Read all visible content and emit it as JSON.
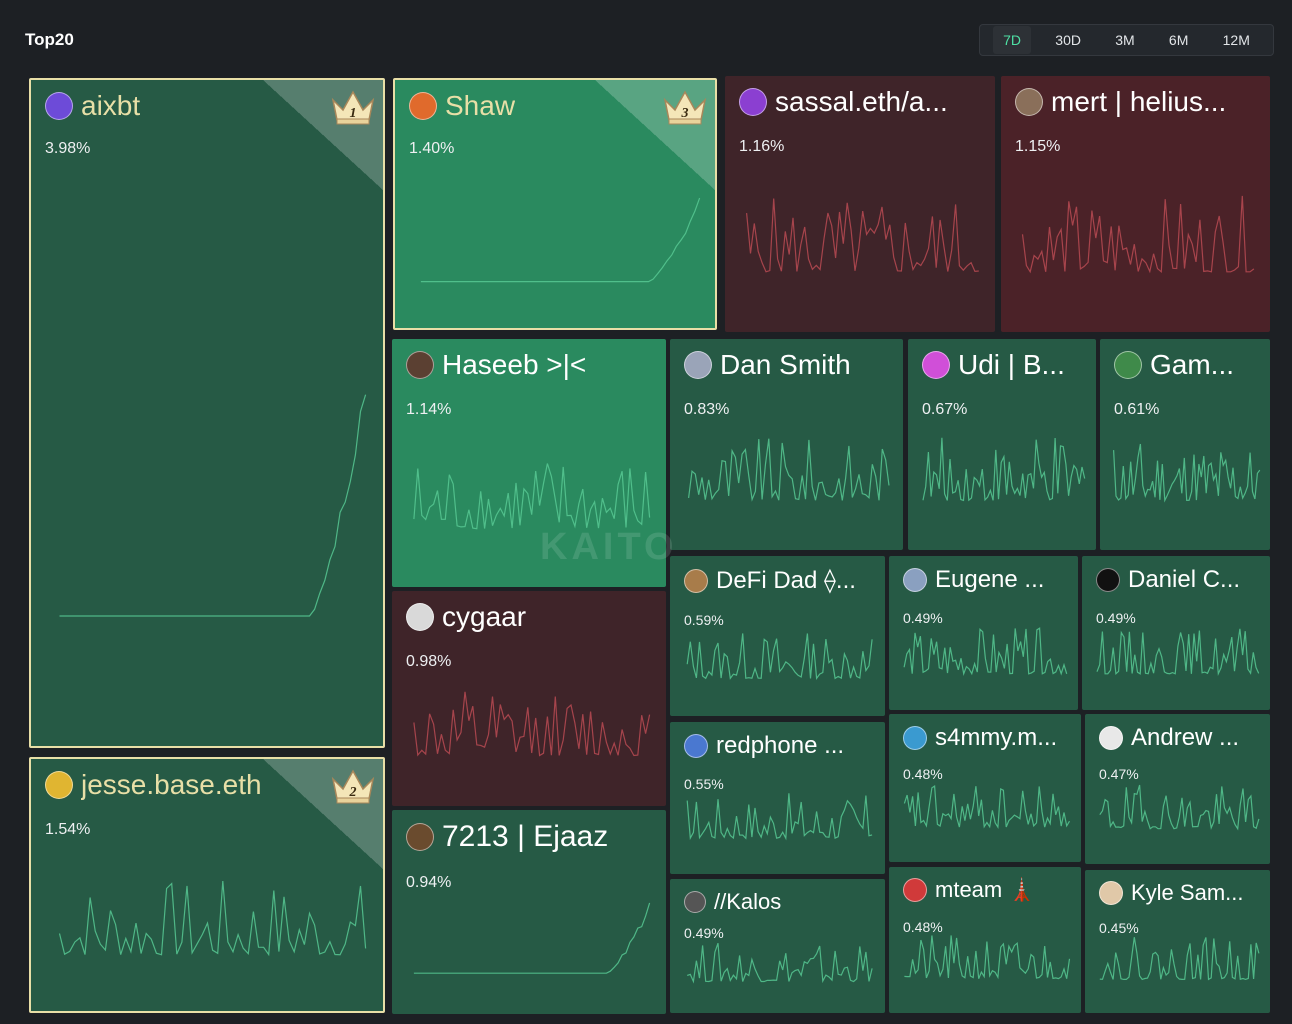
{
  "header": {
    "title": "Top20",
    "ranges": [
      "7D",
      "30D",
      "3M",
      "6M",
      "12M"
    ],
    "active_range": "7D"
  },
  "watermark": "KAITO",
  "colors": {
    "up": "#265a45",
    "up_bright": "#2a8a5f",
    "down": "#3f2429",
    "down_medium": "#4b2228",
    "spark_up": "#57c893",
    "spark_down": "#b84a52",
    "gold": "#e8dfa7"
  },
  "tiles": [
    {
      "name": "aixbt",
      "pct": "3.98%",
      "rank": "1",
      "trend": "up",
      "avatar_icon": "purple-avatar-icon"
    },
    {
      "name": "Shaw",
      "pct": "1.40%",
      "rank": "3",
      "trend": "up",
      "avatar_icon": "orange-hat-avatar-icon"
    },
    {
      "name": "sassal.eth/a...",
      "pct": "1.16%",
      "trend": "down",
      "avatar_icon": "purple-glow-avatar-icon"
    },
    {
      "name": "mert | helius...",
      "pct": "1.15%",
      "trend": "down",
      "avatar_icon": "bearded-avatar-icon"
    },
    {
      "name": "jesse.base.eth",
      "pct": "1.54%",
      "rank": "2",
      "trend": "up",
      "avatar_icon": "yellow-avatar-icon"
    },
    {
      "name": "Haseeb >|<",
      "pct": "1.14%",
      "trend": "up",
      "avatar_icon": "portrait-avatar-icon"
    },
    {
      "name": "Dan Smith",
      "pct": "0.83%",
      "trend": "up",
      "avatar_icon": "pixel-avatar-icon"
    },
    {
      "name": "Udi | B...",
      "pct": "0.67%",
      "trend": "up",
      "avatar_icon": "pink-avatar-icon"
    },
    {
      "name": "Gam...",
      "pct": "0.61%",
      "trend": "up",
      "avatar_icon": "green-avatar-icon"
    },
    {
      "name": "cygaar",
      "pct": "0.98%",
      "trend": "down",
      "avatar_icon": "cartoon-avatar-icon"
    },
    {
      "name": "DeFi Dad ⟠...",
      "pct": "0.59%",
      "trend": "up",
      "avatar_icon": "dad-avatar-icon"
    },
    {
      "name": "Eugene ...",
      "pct": "0.49%",
      "trend": "up",
      "avatar_icon": "statue-avatar-icon"
    },
    {
      "name": "Daniel C...",
      "pct": "0.49%",
      "trend": "up",
      "avatar_icon": "dark-avatar-icon"
    },
    {
      "name": "7213 | Ejaaz",
      "pct": "0.94%",
      "trend": "up",
      "avatar_icon": "monkey-avatar-icon"
    },
    {
      "name": "redphone ...",
      "pct": "0.55%",
      "trend": "up",
      "avatar_icon": "blue-avatar-icon"
    },
    {
      "name": "s4mmy.m...",
      "pct": "0.48%",
      "trend": "up",
      "avatar_icon": "glass-avatar-icon"
    },
    {
      "name": "Andrew ...",
      "pct": "0.47%",
      "trend": "up",
      "avatar_icon": "silhouette-avatar-icon"
    },
    {
      "name": "//Kalos",
      "pct": "0.49%",
      "trend": "up",
      "avatar_icon": "kalos-avatar-icon"
    },
    {
      "name": "mteam 🗼",
      "pct": "0.48%",
      "trend": "up",
      "avatar_icon": "red-avatar-icon"
    },
    {
      "name": "Kyle Sam...",
      "pct": "0.45%",
      "trend": "up",
      "avatar_icon": "smile-avatar-icon"
    }
  ]
}
